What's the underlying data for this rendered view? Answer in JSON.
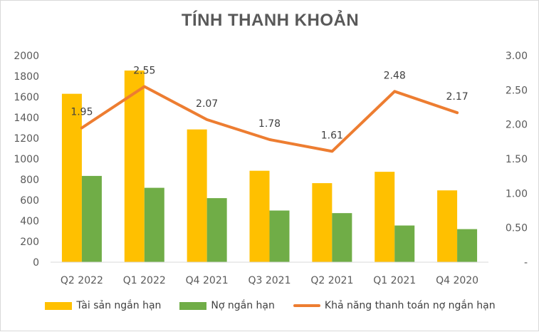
{
  "chart_data": {
    "type": "bar",
    "title": "TÍNH THANH KHOẢN",
    "categories": [
      "Q2 2022",
      "Q1 2022",
      "Q4 2021",
      "Q3 2021",
      "Q2 2021",
      "Q1 2021",
      "Q4 2020"
    ],
    "series": [
      {
        "name": "Tài sản ngắn hạn",
        "type": "bar",
        "axis": "left",
        "color": "#FFC000",
        "values": [
          1630,
          1855,
          1285,
          885,
          765,
          875,
          695
        ]
      },
      {
        "name": "Nợ ngắn hạn",
        "type": "bar",
        "axis": "left",
        "color": "#70AD47",
        "values": [
          835,
          720,
          620,
          500,
          475,
          355,
          320
        ]
      },
      {
        "name": "Khả năng thanh toán nợ ngắn hạn",
        "type": "line",
        "axis": "right",
        "color": "#ED7D31",
        "values": [
          1.95,
          2.55,
          2.07,
          1.78,
          1.61,
          2.48,
          2.17
        ],
        "data_labels": [
          "1.95",
          "2.55",
          "2.07",
          "1.78",
          "1.61",
          "2.48",
          "2.17"
        ]
      }
    ],
    "y_left": {
      "ylim": [
        0,
        2000
      ],
      "ticks": [
        "0",
        "200",
        "400",
        "600",
        "800",
        "1000",
        "1200",
        "1400",
        "1600",
        "1800",
        "2000"
      ]
    },
    "y_right": {
      "ylim": [
        0,
        3
      ],
      "ticks": [
        "-",
        "0.50",
        "1.00",
        "1.50",
        "2.00",
        "2.50",
        "3.00"
      ]
    },
    "xlabel": "",
    "ylabel": "",
    "grid": false,
    "legend": "bottom"
  }
}
